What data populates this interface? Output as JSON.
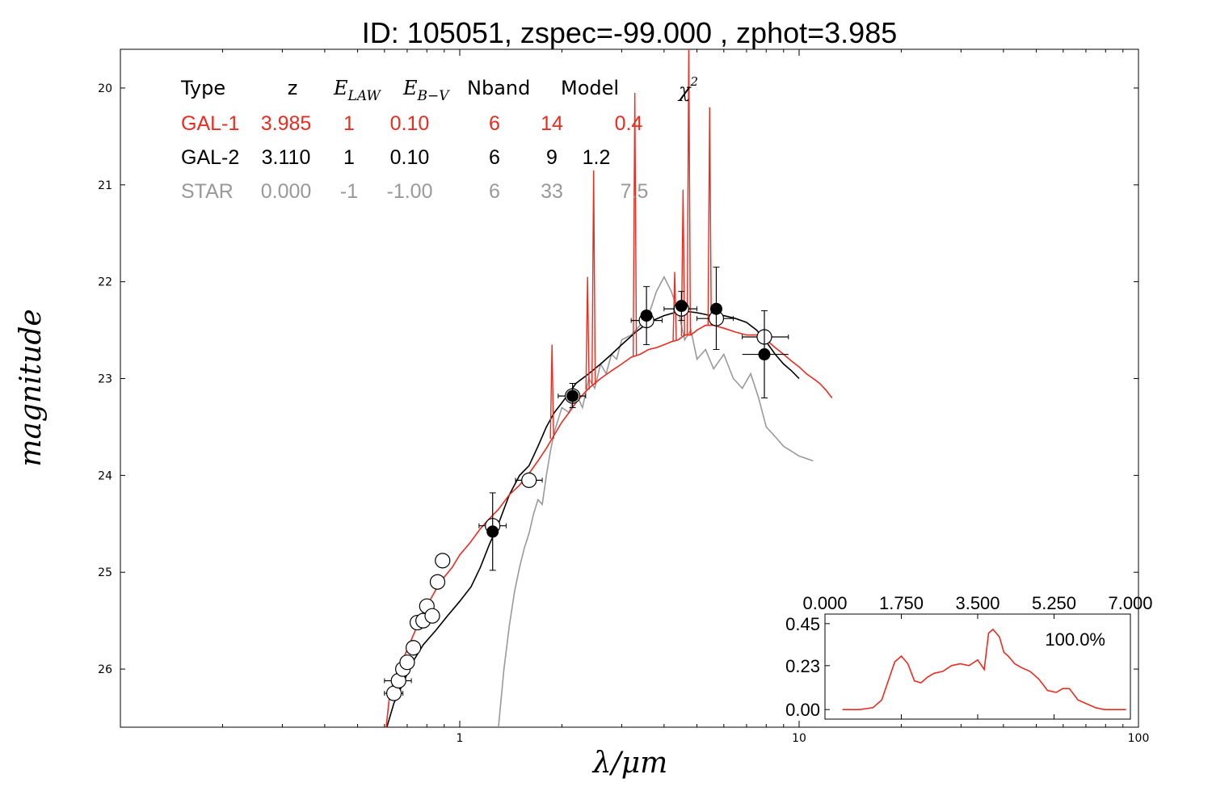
{
  "title": "ID:  105051, zspec=-99.000 , zphot=3.985",
  "chart_data": {
    "type": "line",
    "xlabel": "λ/μm",
    "ylabel": "magnitude",
    "xscale": "log",
    "xlim": [
      0.1,
      100
    ],
    "ylim": [
      26.6,
      19.6
    ],
    "x_tick_labels": [
      "1",
      "10",
      "100"
    ],
    "y_tick_labels": [
      "20",
      "21",
      "22",
      "23",
      "24",
      "25",
      "26"
    ],
    "table": {
      "headers": {
        "type": "Type",
        "z": "z",
        "elaw_main": "E",
        "elaw_sub": "LAW",
        "ebv_main": "E",
        "ebv_sub": "B−V",
        "nband": "Nband",
        "model": "Model",
        "chi_main": "χ",
        "chi_sup": "2"
      },
      "rows": [
        {
          "type": "GAL-1",
          "z": "3.985",
          "elaw": "1",
          "ebv": "0.10",
          "nband": "6",
          "model": "14",
          "chi2": "0.4",
          "color": "#ee2b1f"
        },
        {
          "type": "GAL-2",
          "z": "3.110",
          "elaw": "1",
          "ebv": "0.10",
          "nband": "6",
          "model": "9",
          "chi2": "1.2",
          "color": "#000000"
        },
        {
          "type": "STAR",
          "z": "0.000",
          "elaw": "-1",
          "ebv": "-1.00",
          "nband": "6",
          "model": "33",
          "chi2": "7.5",
          "color": "#999999"
        }
      ]
    },
    "series": [
      {
        "color": "#ee2b1f",
        "x": [
          0.605,
          0.62,
          0.64,
          0.67,
          0.7,
          0.74,
          0.78,
          0.82,
          0.86,
          0.9,
          0.95,
          1.0,
          1.07,
          1.15,
          1.22,
          1.3,
          1.4,
          1.5,
          1.6,
          1.7,
          1.8,
          1.9,
          2.0,
          2.1,
          2.2,
          2.3,
          2.4,
          2.5,
          2.6,
          2.8,
          3.0,
          3.2,
          3.4,
          3.6,
          3.8,
          4.0,
          4.2,
          4.4,
          4.6,
          4.8,
          5.0,
          5.3,
          5.6,
          6.0,
          6.5,
          7.0,
          7.5,
          8.0,
          8.5,
          9.0,
          9.5,
          10.0,
          10.5,
          11.0,
          11.5,
          12.0,
          12.5
        ],
        "y": [
          26.65,
          26.3,
          26.1,
          25.95,
          25.8,
          25.6,
          25.42,
          25.28,
          25.15,
          25.05,
          24.95,
          24.82,
          24.7,
          24.55,
          24.45,
          24.35,
          24.2,
          24.1,
          23.98,
          23.85,
          23.72,
          23.58,
          23.45,
          23.35,
          23.25,
          23.17,
          23.1,
          23.05,
          23.0,
          22.92,
          22.85,
          22.78,
          22.75,
          22.7,
          22.68,
          22.65,
          22.62,
          22.6,
          22.55,
          22.55,
          22.5,
          22.45,
          22.45,
          22.48,
          22.52,
          22.55,
          22.55,
          22.6,
          22.68,
          22.75,
          22.82,
          22.88,
          22.95,
          23.0,
          23.05,
          23.12,
          23.2
        ],
        "emission_lines": [
          {
            "x": 1.87,
            "ymin": 22.65
          },
          {
            "x": 2.38,
            "ymin": 21.95
          },
          {
            "x": 2.48,
            "ymin": 20.85
          },
          {
            "x": 3.28,
            "ymin": 20.05
          },
          {
            "x": 4.3,
            "ymin": 21.9
          },
          {
            "x": 4.55,
            "ymin": 21.05
          },
          {
            "x": 4.73,
            "ymin": 19.55
          },
          {
            "x": 5.45,
            "ymin": 20.2
          }
        ]
      },
      {
        "color": "#000000",
        "x": [
          0.61,
          0.64,
          0.68,
          0.72,
          0.78,
          0.85,
          0.92,
          1.0,
          1.08,
          1.15,
          1.22,
          1.3,
          1.4,
          1.5,
          1.6,
          1.7,
          1.8,
          1.9,
          2.0,
          2.1,
          2.2,
          2.4,
          2.6,
          2.8,
          3.0,
          3.3,
          3.6,
          4.0,
          4.5,
          5.0,
          5.5,
          6.0,
          6.5,
          7.0,
          7.5,
          8.0,
          8.5,
          9.0,
          9.5,
          10.0
        ],
        "y": [
          26.6,
          26.35,
          26.15,
          25.95,
          25.75,
          25.6,
          25.45,
          25.3,
          25.15,
          24.95,
          24.72,
          24.5,
          24.2,
          24.0,
          23.9,
          23.7,
          23.5,
          23.35,
          23.25,
          23.15,
          23.05,
          22.95,
          22.85,
          22.75,
          22.65,
          22.52,
          22.42,
          22.35,
          22.3,
          22.32,
          22.35,
          22.35,
          22.38,
          22.42,
          22.5,
          22.62,
          22.75,
          22.85,
          22.92,
          23.0
        ]
      },
      {
        "color": "#999999",
        "x": [
          1.3,
          1.35,
          1.4,
          1.45,
          1.5,
          1.55,
          1.6,
          1.65,
          1.7,
          1.75,
          1.8,
          1.85,
          1.9,
          2.0,
          2.1,
          2.2,
          2.3,
          2.4,
          2.5,
          2.6,
          2.7,
          2.8,
          2.9,
          3.0,
          3.2,
          3.4,
          3.6,
          3.8,
          4.0,
          4.2,
          4.4,
          4.6,
          4.8,
          5.0,
          5.3,
          5.6,
          6.0,
          6.4,
          6.8,
          7.2,
          7.6,
          8.0,
          8.5,
          9.0,
          9.5,
          10.0,
          11.0
        ],
        "y": [
          26.6,
          26.0,
          25.55,
          25.2,
          24.95,
          24.75,
          24.6,
          24.4,
          24.25,
          24.3,
          24.0,
          23.75,
          23.55,
          23.3,
          23.35,
          23.15,
          23.3,
          23.0,
          23.1,
          22.85,
          22.95,
          22.75,
          22.8,
          22.6,
          22.55,
          22.45,
          22.35,
          22.1,
          21.95,
          22.1,
          22.3,
          22.6,
          22.5,
          22.8,
          22.7,
          22.9,
          22.75,
          23.0,
          23.1,
          22.95,
          23.2,
          23.5,
          23.6,
          23.7,
          23.75,
          23.8,
          23.85
        ]
      }
    ],
    "observed_points": [
      {
        "x": 0.64,
        "y": 26.25,
        "xerr": [
          0.6,
          0.68
        ]
      },
      {
        "x": 0.66,
        "y": 26.12,
        "xerr": [
          0.6,
          0.72
        ]
      },
      {
        "x": 0.68,
        "y": 26.0
      },
      {
        "x": 0.7,
        "y": 25.93
      },
      {
        "x": 0.73,
        "y": 25.78
      },
      {
        "x": 0.75,
        "y": 25.52
      },
      {
        "x": 0.78,
        "y": 25.5
      },
      {
        "x": 0.8,
        "y": 25.35
      },
      {
        "x": 0.83,
        "y": 25.45
      },
      {
        "x": 0.86,
        "y": 25.1,
        "xerr": [
          0.83,
          0.9
        ]
      },
      {
        "x": 0.89,
        "y": 24.88,
        "xerr": [
          0.86,
          0.93
        ]
      },
      {
        "x": 1.25,
        "y": 24.52,
        "xerr": [
          1.14,
          1.37
        ]
      },
      {
        "x": 1.6,
        "y": 24.05,
        "xerr": [
          1.46,
          1.75
        ]
      },
      {
        "x": 2.15,
        "y": 23.18,
        "xerr": [
          1.95,
          2.35
        ]
      },
      {
        "x": 3.55,
        "y": 22.4,
        "xerr": [
          3.2,
          3.95
        ]
      },
      {
        "x": 4.5,
        "y": 22.28,
        "xerr": [
          4.0,
          5.0
        ]
      },
      {
        "x": 5.7,
        "y": 22.38,
        "xerr": [
          5.0,
          6.4
        ]
      },
      {
        "x": 7.9,
        "y": 22.57,
        "xerr": [
          6.8,
          9.3
        ]
      }
    ],
    "filled_points": [
      {
        "x": 1.25,
        "y": 24.58,
        "yerr": [
          24.18,
          24.98
        ]
      },
      {
        "x": 2.15,
        "y": 23.18,
        "yerr": [
          23.05,
          23.3
        ]
      },
      {
        "x": 3.55,
        "y": 22.35,
        "yerr": [
          22.05,
          22.65
        ]
      },
      {
        "x": 4.5,
        "y": 22.25,
        "yerr": [
          22.1,
          22.4
        ]
      },
      {
        "x": 5.7,
        "y": 22.28,
        "yerr": [
          21.85,
          22.7
        ]
      },
      {
        "x": 7.9,
        "y": 22.75,
        "yerr": [
          22.3,
          23.2
        ],
        "xerr": [
          6.8,
          9.3
        ]
      }
    ],
    "inset": {
      "x_tick_labels": [
        "0.000",
        "1.750",
        "3.500",
        "5.250",
        "7.000"
      ],
      "y_tick_labels": [
        "0.45",
        "0.23",
        "0.00"
      ],
      "xlim": [
        0.0,
        7.0
      ],
      "ylim": [
        -0.05,
        0.5
      ],
      "annotation": "100.0%",
      "color": "#ee2b1f",
      "x": [
        0.4,
        0.8,
        1.1,
        1.3,
        1.45,
        1.6,
        1.75,
        1.9,
        2.05,
        2.2,
        2.35,
        2.5,
        2.7,
        2.9,
        3.1,
        3.3,
        3.5,
        3.65,
        3.75,
        3.85,
        4.0,
        4.1,
        4.2,
        4.35,
        4.5,
        4.7,
        4.9,
        5.1,
        5.3,
        5.45,
        5.6,
        5.8,
        6.0,
        6.2,
        6.4,
        6.6,
        6.9
      ],
      "y": [
        0.0,
        0.0,
        0.01,
        0.05,
        0.15,
        0.25,
        0.28,
        0.24,
        0.15,
        0.14,
        0.17,
        0.19,
        0.2,
        0.23,
        0.24,
        0.23,
        0.26,
        0.21,
        0.4,
        0.42,
        0.38,
        0.3,
        0.28,
        0.24,
        0.22,
        0.2,
        0.16,
        0.1,
        0.09,
        0.11,
        0.11,
        0.05,
        0.03,
        0.01,
        0.0,
        0.0,
        0.0
      ]
    }
  }
}
